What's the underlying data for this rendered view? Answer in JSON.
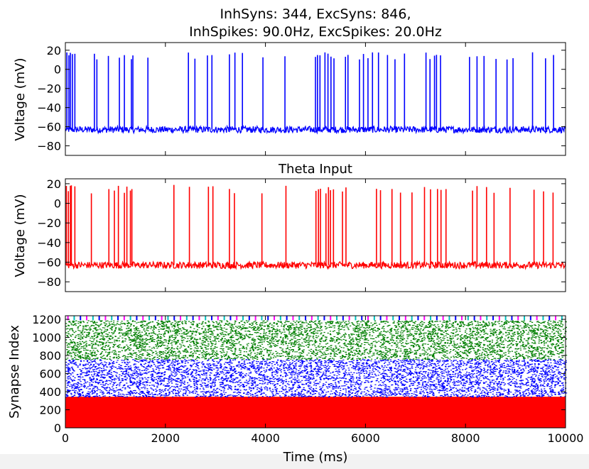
{
  "title_line1": "InhSyns: 344, ExcSyns: 846,",
  "title_line2": "InhSpikes: 90.0Hz, ExcSpikes: 20.0Hz",
  "chart_data": [
    {
      "type": "line",
      "title": "",
      "ylabel": "Voltage (mV)",
      "ylim": [
        -90,
        28
      ],
      "xlim": [
        0,
        10000
      ],
      "yticks": [
        20,
        0,
        -20,
        -40,
        -60,
        -80
      ],
      "color": "#0000ff",
      "baseline_mv": -63,
      "spike_peak_mv": [
        10,
        18
      ],
      "spike_times_ms": [
        30,
        70,
        100,
        140,
        190,
        580,
        630,
        860,
        1080,
        1180,
        1320,
        1350,
        1650,
        2460,
        2590,
        2840,
        2930,
        3280,
        3390,
        3540,
        3950,
        4390,
        5000,
        5040,
        5090,
        5190,
        5250,
        5310,
        5370,
        5600,
        5650,
        5880,
        5960,
        6050,
        6140,
        6260,
        6440,
        6590,
        6780,
        7210,
        7290,
        7380,
        7420,
        7500,
        8080,
        8230,
        8370,
        8610,
        8830,
        8950,
        9340,
        9600,
        9760
      ],
      "grid": false
    },
    {
      "type": "line",
      "title": "Theta Input",
      "ylabel": "Voltage (mV)",
      "ylim": [
        -90,
        25
      ],
      "xlim": [
        0,
        10000
      ],
      "yticks": [
        20,
        0,
        -20,
        -40,
        -60,
        -80
      ],
      "color": "#ff0000",
      "baseline_mv": -63,
      "spike_peak_mv": [
        10,
        19
      ],
      "spike_times_ms": [
        20,
        60,
        100,
        120,
        190,
        520,
        870,
        980,
        1060,
        1180,
        1230,
        1300,
        1330,
        2170,
        2480,
        2860,
        2950,
        3280,
        3380,
        3930,
        4410,
        5010,
        5060,
        5100,
        5210,
        5260,
        5300,
        5360,
        5540,
        5610,
        6220,
        6300,
        6530,
        6700,
        6930,
        7180,
        7300,
        7440,
        7510,
        7610,
        8140,
        8230,
        8420,
        8570,
        8890,
        9370,
        9560,
        9750
      ],
      "grid": false
    },
    {
      "type": "scatter",
      "title": "",
      "xlabel": "Time (ms)",
      "ylabel": "Synapse Index",
      "xlim": [
        0,
        10000
      ],
      "ylim": [
        0,
        1240
      ],
      "xticks": [
        0,
        2000,
        4000,
        6000,
        8000,
        10000
      ],
      "yticks": [
        0,
        200,
        400,
        600,
        800,
        1000,
        1200
      ],
      "series": [
        {
          "index_range": [
            0,
            344
          ],
          "color": "#ff0000",
          "rate_hz": 90.0
        },
        {
          "index_range": [
            344,
            760
          ],
          "color": "#0000ff",
          "rate_hz": 20.0
        },
        {
          "index_range": [
            760,
            1190
          ],
          "color": "#007f00",
          "rate_hz": 20.0
        },
        {
          "index_range": [
            1190,
            1240
          ],
          "color": "#ff00ff",
          "pattern": "periodic"
        }
      ],
      "grid": false
    }
  ]
}
